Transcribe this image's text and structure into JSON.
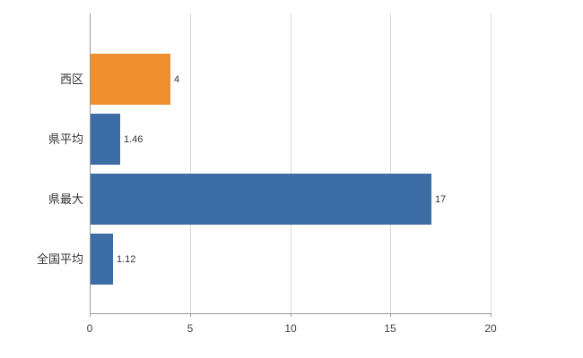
{
  "chart_data": {
    "type": "bar",
    "orientation": "horizontal",
    "title": "",
    "xlabel": "",
    "ylabel": "",
    "categories": [
      "西区",
      "県平均",
      "県最大",
      "全国平均"
    ],
    "values": [
      4,
      1.46,
      17,
      1.12
    ],
    "value_labels": [
      "4",
      "1.46",
      "17",
      "1.12"
    ],
    "bar_colors": [
      "#EE8E2E",
      "#3C6EA5",
      "#3C6EA5",
      "#3C6EA5"
    ],
    "xlim": [
      0,
      20
    ],
    "xticks": [
      0,
      5,
      10,
      15,
      20
    ],
    "xtick_labels": [
      "0",
      "5",
      "10",
      "15",
      "20"
    ],
    "grid": true,
    "legend": "none"
  },
  "colors": {
    "background": "#ffffff",
    "gridline": "#d9d9d9",
    "axis": "#9b9b9b",
    "text": "#404040",
    "orange": "#EE8E2E",
    "blue": "#3C6EA5"
  }
}
